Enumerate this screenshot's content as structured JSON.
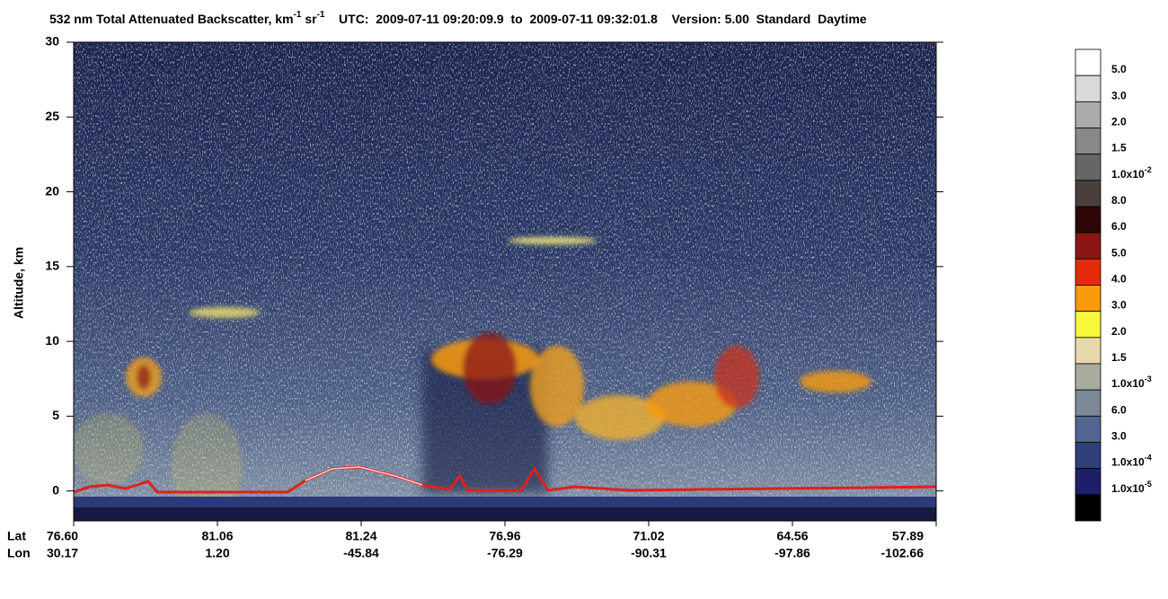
{
  "chart_data": {
    "type": "heatmap",
    "title_parts": [
      {
        "text": "532 nm Total Attenuated Backscatter, km"
      },
      {
        "text": "-1",
        "sup": true
      },
      {
        "text": " sr"
      },
      {
        "text": "-1",
        "sup": true
      },
      {
        "text": "    UTC:  2009-07-11 09:20:09.9  to  2009-07-11 09:32:01.8    Version: 5.00  Standard  Daytime"
      }
    ],
    "y_label": "Altitude, km",
    "ylim": [
      -2,
      30
    ],
    "yticks": [
      0,
      5,
      10,
      15,
      20,
      25,
      30
    ],
    "x_rows": [
      {
        "name": "Lat",
        "labels": [
          "76.60",
          "81.06",
          "81.24",
          "76.96",
          "71.02",
          "64.56",
          "57.89"
        ]
      },
      {
        "name": "Lon",
        "labels": [
          "30.17",
          "1.20",
          "-45.84",
          "-76.29",
          "-90.31",
          "-97.86",
          "-102.66"
        ]
      }
    ],
    "colorbar": {
      "colors": [
        "#ffffff",
        "#d9d9d9",
        "#ababab",
        "#888888",
        "#666666",
        "#4a403b",
        "#2e0606",
        "#8a1616",
        "#e62b0a",
        "#f99b0a",
        "#f9f93c",
        "#e8d9ad",
        "#a8ab9f",
        "#7a8898",
        "#50658f",
        "#2f3f7a",
        "#1e1e6a",
        "#000000"
      ],
      "labels": [
        {
          "text": "5.0"
        },
        {
          "text": "3.0"
        },
        {
          "text": "2.0"
        },
        {
          "text": "1.5"
        },
        {
          "text": "1.0x10",
          "exp": "-2"
        },
        {
          "text": "8.0"
        },
        {
          "text": "6.0"
        },
        {
          "text": "5.0"
        },
        {
          "text": "4.0"
        },
        {
          "text": "3.0"
        },
        {
          "text": "2.0"
        },
        {
          "text": "1.5"
        },
        {
          "text": "1.0x10",
          "exp": "-3"
        },
        {
          "text": "6.0"
        },
        {
          "text": "3.0"
        },
        {
          "text": "1.0x10",
          "exp": "-4"
        },
        {
          "text": "1.0x10",
          "exp": "-5"
        }
      ]
    }
  }
}
